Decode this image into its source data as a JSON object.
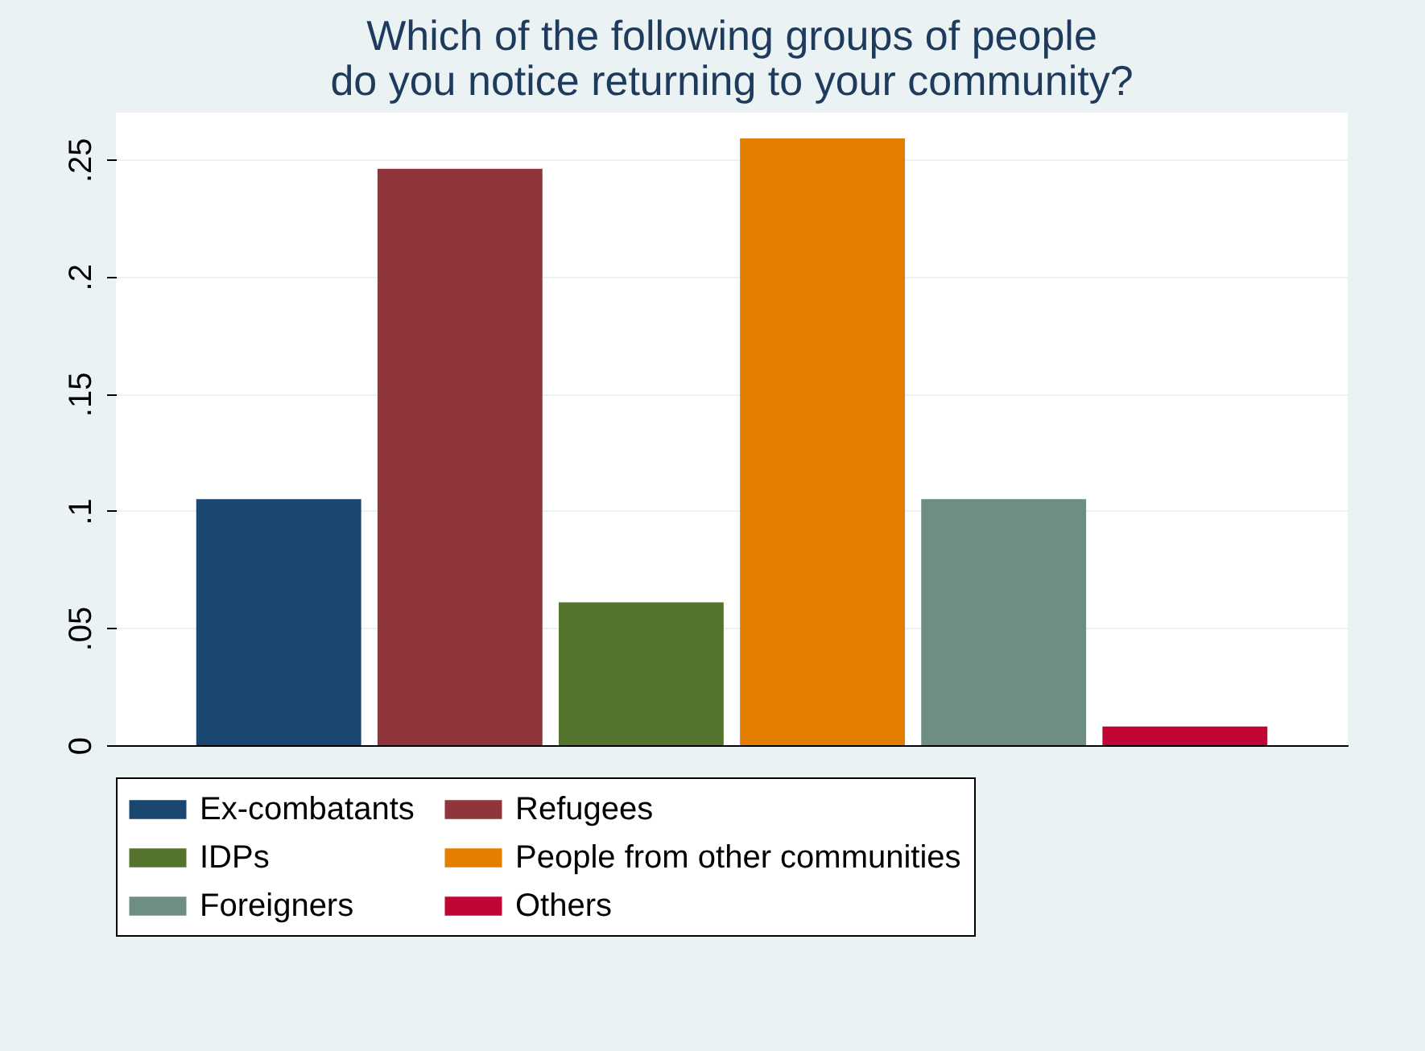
{
  "chart_data": {
    "type": "bar",
    "title": [
      "Which of the following groups of people",
      "do you notice returning to your community?"
    ],
    "categories": [
      null
    ],
    "series": [
      {
        "name": "Ex-combatants",
        "color": "#1a476f",
        "values": [
          0.105
        ]
      },
      {
        "name": "Refugees",
        "color": "#90353b",
        "values": [
          0.246
        ]
      },
      {
        "name": "IDPs",
        "color": "#55752f",
        "values": [
          0.061
        ]
      },
      {
        "name": "People from other communities",
        "color": "#e37e00",
        "values": [
          0.259
        ]
      },
      {
        "name": "Foreigners",
        "color": "#6e8e84",
        "values": [
          0.105
        ]
      },
      {
        "name": "Others",
        "color": "#c10534",
        "values": [
          0.008
        ]
      }
    ],
    "ylim": [
      0,
      0.27
    ],
    "yticks": [
      {
        "value": 0,
        "label": "0"
      },
      {
        "value": 0.05,
        "label": ".05"
      },
      {
        "value": 0.1,
        "label": ".1"
      },
      {
        "value": 0.15,
        "label": ".15"
      },
      {
        "value": 0.2,
        "label": ".2"
      },
      {
        "value": 0.25,
        "label": ".25"
      }
    ],
    "grid": "y",
    "legend": "bottom",
    "tick_labels": "y"
  }
}
